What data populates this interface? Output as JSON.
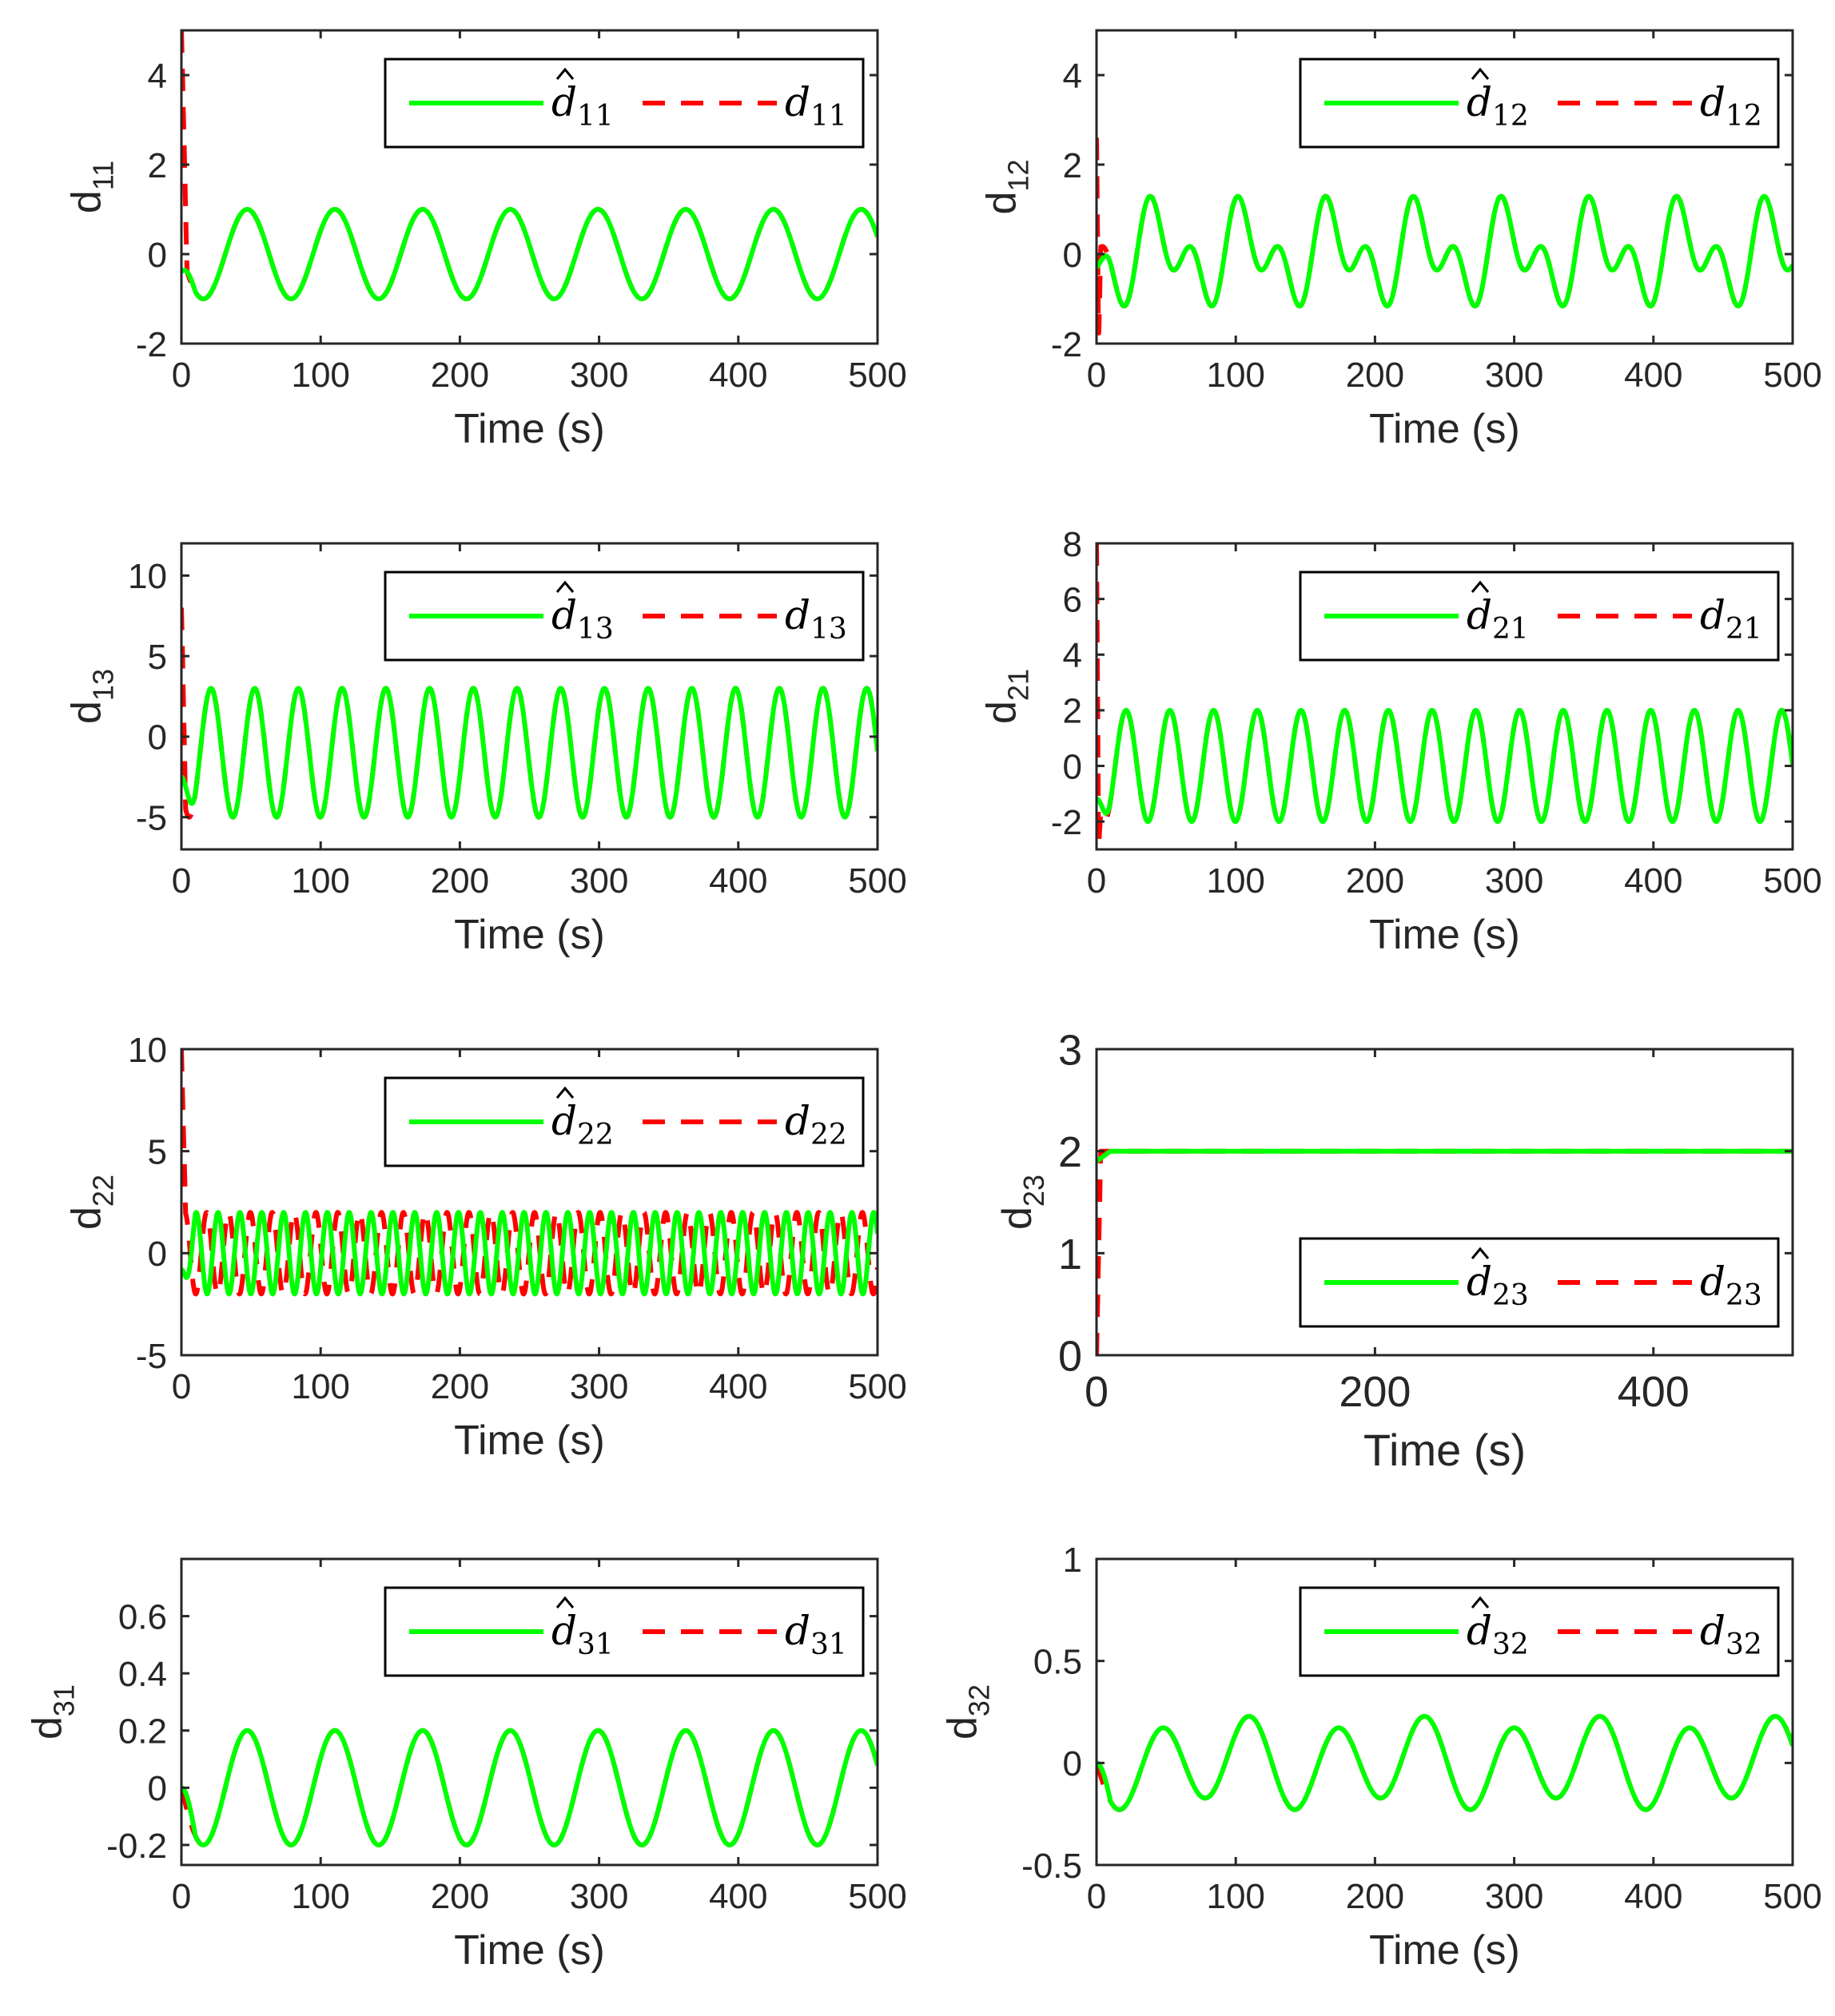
{
  "colors": {
    "estimate": "#00ff00",
    "actual": "#ff0000",
    "axis": "#262626",
    "background": "#ffffff"
  },
  "chart_data": [
    {
      "type": "line",
      "id": "d11",
      "ylabel_main": "d",
      "ylabel_sub": "11",
      "xlabel": "Time (s)",
      "xlim": [
        0,
        500
      ],
      "ylim": [
        -2,
        5
      ],
      "xticks": [
        "0",
        "100",
        "200",
        "300",
        "400",
        "500"
      ],
      "xtick_values": [
        0,
        100,
        200,
        300,
        400,
        500
      ],
      "yticks": [
        "-2",
        "0",
        "2",
        "4"
      ],
      "ytick_values": [
        -2,
        0,
        2,
        4
      ],
      "legend": {
        "position": "top-right",
        "estimate_label": "d",
        "estimate_sub": "11",
        "actual_label": "d",
        "actual_sub": "11"
      },
      "series": [
        {
          "name": "estimate",
          "style": "solid",
          "components": [
            {
              "amp": 1,
              "period": 63,
              "phase": 3.14159
            }
          ],
          "initial_spike": null,
          "initial_offset": -0.4
        },
        {
          "name": "actual",
          "style": "dashed",
          "components": [
            {
              "amp": 1,
              "period": 63,
              "phase": 3.14159
            }
          ],
          "initial_spike": 5.0,
          "spike_width": 4
        }
      ]
    },
    {
      "type": "line",
      "id": "d12",
      "ylabel_main": "d",
      "ylabel_sub": "12",
      "xlabel": "Time (s)",
      "xlim": [
        0,
        500
      ],
      "ylim": [
        -2,
        5
      ],
      "xticks": [
        "0",
        "100",
        "200",
        "300",
        "400",
        "500"
      ],
      "xtick_values": [
        0,
        100,
        200,
        300,
        400,
        500
      ],
      "yticks": [
        "-2",
        "0",
        "2",
        "4"
      ],
      "ytick_values": [
        -2,
        0,
        2,
        4
      ],
      "legend": {
        "position": "top-right",
        "estimate_label": "d",
        "estimate_sub": "12",
        "actual_label": "d",
        "actual_sub": "12"
      },
      "series": [
        {
          "name": "estimate",
          "style": "solid",
          "components": [
            {
              "amp": 0.7,
              "period": 31.5,
              "phase": 0.4
            },
            {
              "amp": 0.7,
              "period": 63,
              "phase": 3.5
            }
          ],
          "initial_spike": null,
          "initial_offset": -0.3
        },
        {
          "name": "actual",
          "style": "dashed",
          "components": [
            {
              "amp": 0.7,
              "period": 31.5,
              "phase": 0.4
            },
            {
              "amp": 0.7,
              "period": 63,
              "phase": 3.5
            }
          ],
          "initial_spike": 2.6,
          "spike_min": -2.0,
          "spike_width": 3
        }
      ]
    },
    {
      "type": "line",
      "id": "d13",
      "ylabel_main": "d",
      "ylabel_sub": "13",
      "xlabel": "Time (s)",
      "xlim": [
        0,
        500
      ],
      "ylim": [
        -7,
        12
      ],
      "xticks": [
        "0",
        "100",
        "200",
        "300",
        "400",
        "500"
      ],
      "xtick_values": [
        0,
        100,
        200,
        300,
        400,
        500
      ],
      "yticks": [
        "-5",
        "0",
        "5",
        "10"
      ],
      "ytick_values": [
        -5,
        0,
        5,
        10
      ],
      "legend": {
        "position": "top-right",
        "estimate_label": "d",
        "estimate_sub": "13",
        "actual_label": "d",
        "actual_sub": "13"
      },
      "series": [
        {
          "name": "estimate",
          "style": "solid",
          "components": [
            {
              "amp": 4,
              "period": 31.4,
              "phase": 3.6
            }
          ],
          "bias": -1,
          "initial_spike": null,
          "initial_offset": -2.5
        },
        {
          "name": "actual",
          "style": "dashed",
          "components": [
            {
              "amp": 4,
              "period": 31.4,
              "phase": 3.6
            }
          ],
          "bias": -1,
          "initial_spike": 8.0,
          "spike_width": 3
        }
      ]
    },
    {
      "type": "line",
      "id": "d21",
      "ylabel_main": "d",
      "ylabel_sub": "21",
      "xlabel": "Time (s)",
      "xlim": [
        0,
        500
      ],
      "ylim": [
        -3,
        8
      ],
      "xticks": [
        "0",
        "100",
        "200",
        "300",
        "400",
        "500"
      ],
      "xtick_values": [
        0,
        100,
        200,
        300,
        400,
        500
      ],
      "yticks": [
        "-2",
        "0",
        "2",
        "4",
        "6",
        "8"
      ],
      "ytick_values": [
        -2,
        0,
        2,
        4,
        6,
        8
      ],
      "legend": {
        "position": "top-right",
        "estimate_label": "d",
        "estimate_sub": "21",
        "actual_label": "d",
        "actual_sub": "21"
      },
      "series": [
        {
          "name": "estimate",
          "style": "solid",
          "components": [
            {
              "amp": 2,
              "period": 31.4,
              "phase": 3.6
            }
          ],
          "initial_spike": null,
          "initial_offset": -1.2
        },
        {
          "name": "actual",
          "style": "dashed",
          "components": [
            {
              "amp": 2,
              "period": 31.4,
              "phase": 3.6
            }
          ],
          "initial_spike": 8.0,
          "spike_min": -3.0,
          "spike_width": 3
        }
      ]
    },
    {
      "type": "line",
      "id": "d22",
      "ylabel_main": "d",
      "ylabel_sub": "22",
      "xlabel": "Time (s)",
      "xlim": [
        0,
        500
      ],
      "ylim": [
        -5,
        10
      ],
      "xticks": [
        "0",
        "100",
        "200",
        "300",
        "400",
        "500"
      ],
      "xtick_values": [
        0,
        100,
        200,
        300,
        400,
        500
      ],
      "yticks": [
        "-5",
        "0",
        "5",
        "10"
      ],
      "ytick_values": [
        -5,
        0,
        5,
        10
      ],
      "legend": {
        "position": "top-right",
        "estimate_label": "d",
        "estimate_sub": "22",
        "actual_label": "d",
        "actual_sub": "22"
      },
      "series": [
        {
          "name": "estimate",
          "style": "solid",
          "components": [
            {
              "amp": 2,
              "period": 15.7,
              "phase": 3.6
            }
          ],
          "initial_spike": null,
          "initial_offset": -0.8
        },
        {
          "name": "actual",
          "style": "dashed",
          "components": [
            {
              "amp": 2,
              "period": 15.7,
              "phase": 0.6
            }
          ],
          "initial_spike": 10.0,
          "spike_width": 3
        }
      ]
    },
    {
      "type": "line",
      "id": "d23",
      "ylabel_main": "d",
      "ylabel_sub": "23",
      "xlabel": "Time (s)",
      "xlim": [
        0,
        500
      ],
      "ylim": [
        0,
        3
      ],
      "xticks": [
        "0",
        "200",
        "400"
      ],
      "xtick_values": [
        0,
        200,
        400
      ],
      "yticks": [
        "0",
        "1",
        "2",
        "3"
      ],
      "ytick_values": [
        0,
        1,
        2,
        3
      ],
      "legend": {
        "position": "bottom-right",
        "estimate_label": "d",
        "estimate_sub": "23",
        "actual_label": "d",
        "actual_sub": "23"
      },
      "series": [
        {
          "name": "estimate",
          "style": "solid",
          "components": [],
          "bias": 2,
          "initial_spike": null,
          "initial_offset": 1.9
        },
        {
          "name": "actual",
          "style": "dashed",
          "components": [],
          "bias": 2,
          "initial_spike": 0.0,
          "spike_width": 3
        }
      ]
    },
    {
      "type": "line",
      "id": "d31",
      "ylabel_main": "d",
      "ylabel_sub": "31",
      "xlabel": "Time (s)",
      "xlim": [
        0,
        500
      ],
      "ylim": [
        -0.27,
        0.8
      ],
      "xticks": [
        "0",
        "100",
        "200",
        "300",
        "400",
        "500"
      ],
      "xtick_values": [
        0,
        100,
        200,
        300,
        400,
        500
      ],
      "yticks": [
        "-0.2",
        "0",
        "0.2",
        "0.4",
        "0.6"
      ],
      "ytick_values": [
        -0.2,
        0,
        0.2,
        0.4,
        0.6
      ],
      "legend": {
        "position": "top-right",
        "estimate_label": "d",
        "estimate_sub": "31",
        "actual_label": "d",
        "actual_sub": "31"
      },
      "series": [
        {
          "name": "estimate",
          "style": "solid",
          "components": [
            {
              "amp": 0.2,
              "period": 63,
              "phase": 3.14159
            }
          ],
          "initial_spike": null,
          "initial_offset": 0
        },
        {
          "name": "actual",
          "style": "dashed",
          "components": [
            {
              "amp": 0.2,
              "period": 63,
              "phase": 3.14159
            }
          ],
          "initial_spike": null
        }
      ]
    },
    {
      "type": "line",
      "id": "d32",
      "ylabel_main": "d",
      "ylabel_sub": "32",
      "xlabel": "Time (s)",
      "xlim": [
        0,
        500
      ],
      "ylim": [
        -0.5,
        1
      ],
      "xticks": [
        "0",
        "100",
        "200",
        "300",
        "400",
        "500"
      ],
      "xtick_values": [
        0,
        100,
        200,
        300,
        400,
        500
      ],
      "yticks": [
        "-0.5",
        "0",
        "0.5",
        "1"
      ],
      "ytick_values": [
        -0.5,
        0,
        0.5,
        1
      ],
      "legend": {
        "position": "top-right",
        "estimate_label": "d",
        "estimate_sub": "32",
        "actual_label": "d",
        "actual_sub": "32"
      },
      "series": [
        {
          "name": "estimate",
          "style": "solid",
          "components": [
            {
              "amp": 0.2,
              "period": 63,
              "phase": 3.14159
            },
            {
              "amp": 0.04,
              "period": 126,
              "phase": 3.14159
            }
          ],
          "initial_spike": null,
          "initial_offset": 0
        },
        {
          "name": "actual",
          "style": "dashed",
          "components": [
            {
              "amp": 0.2,
              "period": 63,
              "phase": 3.14159
            },
            {
              "amp": 0.04,
              "period": 126,
              "phase": 3.14159
            }
          ],
          "initial_spike": null
        }
      ]
    }
  ]
}
